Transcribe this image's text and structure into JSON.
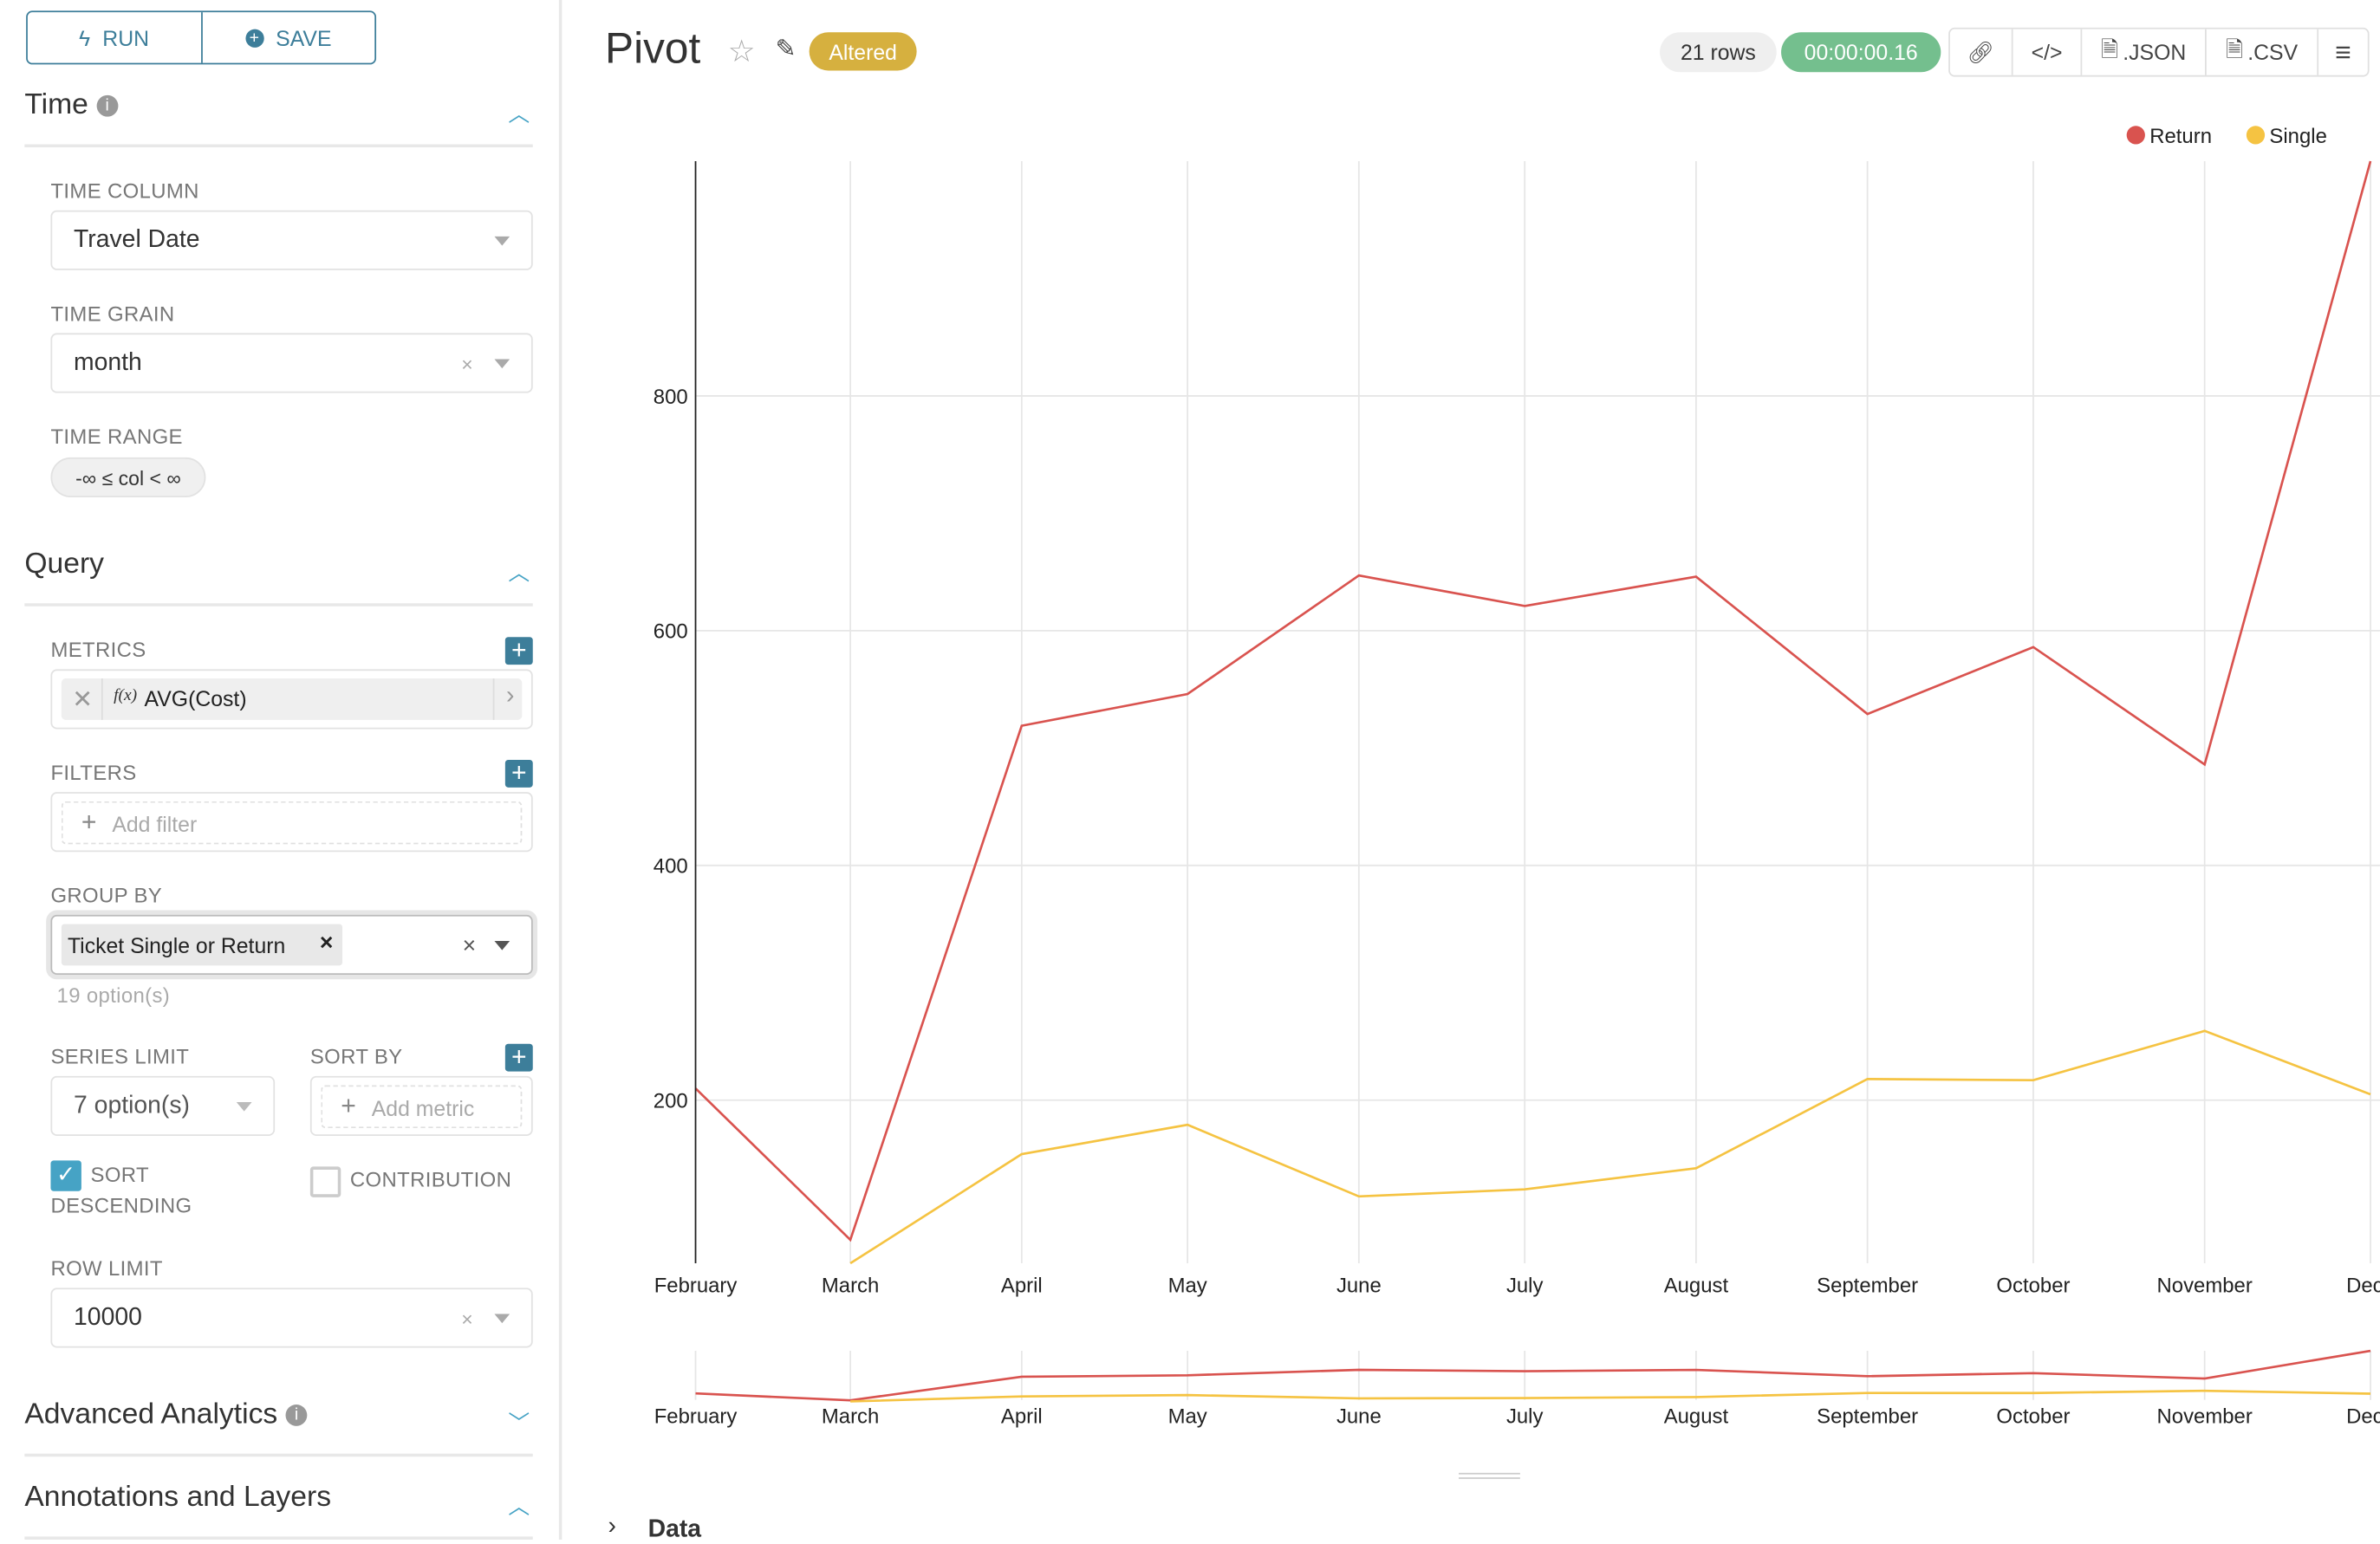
{
  "sidebar": {
    "run_label": "RUN",
    "save_label": "SAVE",
    "time_section": {
      "title": "Time",
      "time_column_label": "TIME COLUMN",
      "time_column_value": "Travel Date",
      "time_grain_label": "TIME GRAIN",
      "time_grain_value": "month",
      "time_range_label": "TIME RANGE",
      "time_range_value": "-∞ ≤ col < ∞"
    },
    "query_section": {
      "title": "Query",
      "metrics_label": "METRICS",
      "metric_fx": "f(x)",
      "metric_value": "AVG(Cost)",
      "filters_label": "FILTERS",
      "add_filter_placeholder": "Add filter",
      "group_by_label": "GROUP BY",
      "group_by_value": "Ticket Single or Return",
      "group_by_options_hint": "19 option(s)",
      "series_limit_label": "SERIES LIMIT",
      "series_limit_value": "7 option(s)",
      "sort_by_label": "SORT BY",
      "add_metric_placeholder": "Add metric",
      "sort_descending_label_1": "SORT",
      "sort_descending_label_2": "DESCENDING",
      "sort_descending_checked": true,
      "contribution_label": "CONTRIBUTION",
      "contribution_checked": false,
      "row_limit_label": "ROW LIMIT",
      "row_limit_value": "10000"
    },
    "advanced_analytics_title": "Advanced Analytics",
    "annotations_title": "Annotations and Layers"
  },
  "header": {
    "title": "Pivot",
    "altered_badge": "Altered",
    "rows_badge": "21 rows",
    "timer_badge": "00:00:00.16",
    "json_label": ".JSON",
    "csv_label": ".CSV"
  },
  "colors": {
    "accent": "#3d7e9a",
    "altered": "#d6b03f",
    "timer": "#74bf8e",
    "return": "#d9534f",
    "single": "#f5c342"
  },
  "data_section_label": "Data",
  "chart_data": {
    "type": "line",
    "categories": [
      "February",
      "March",
      "April",
      "May",
      "June",
      "July",
      "August",
      "September",
      "October",
      "November",
      "December"
    ],
    "x_tick_labels": [
      "February",
      "March",
      "April",
      "May",
      "June",
      "July",
      "August",
      "September",
      "October",
      "November",
      "Dece"
    ],
    "y_ticks": [
      200,
      400,
      600,
      800
    ],
    "ylim": [
      61,
      1000
    ],
    "grid": true,
    "legend_position": "top-right",
    "series": [
      {
        "name": "Return",
        "color": "#d9534f",
        "values": [
          210,
          81,
          519,
          546,
          647,
          621,
          646,
          529,
          586,
          486,
          1000
        ]
      },
      {
        "name": "Single",
        "color": "#f5c342",
        "values": [
          null,
          61,
          154,
          179,
          118,
          124,
          142,
          218,
          217,
          259,
          205
        ]
      }
    ]
  }
}
